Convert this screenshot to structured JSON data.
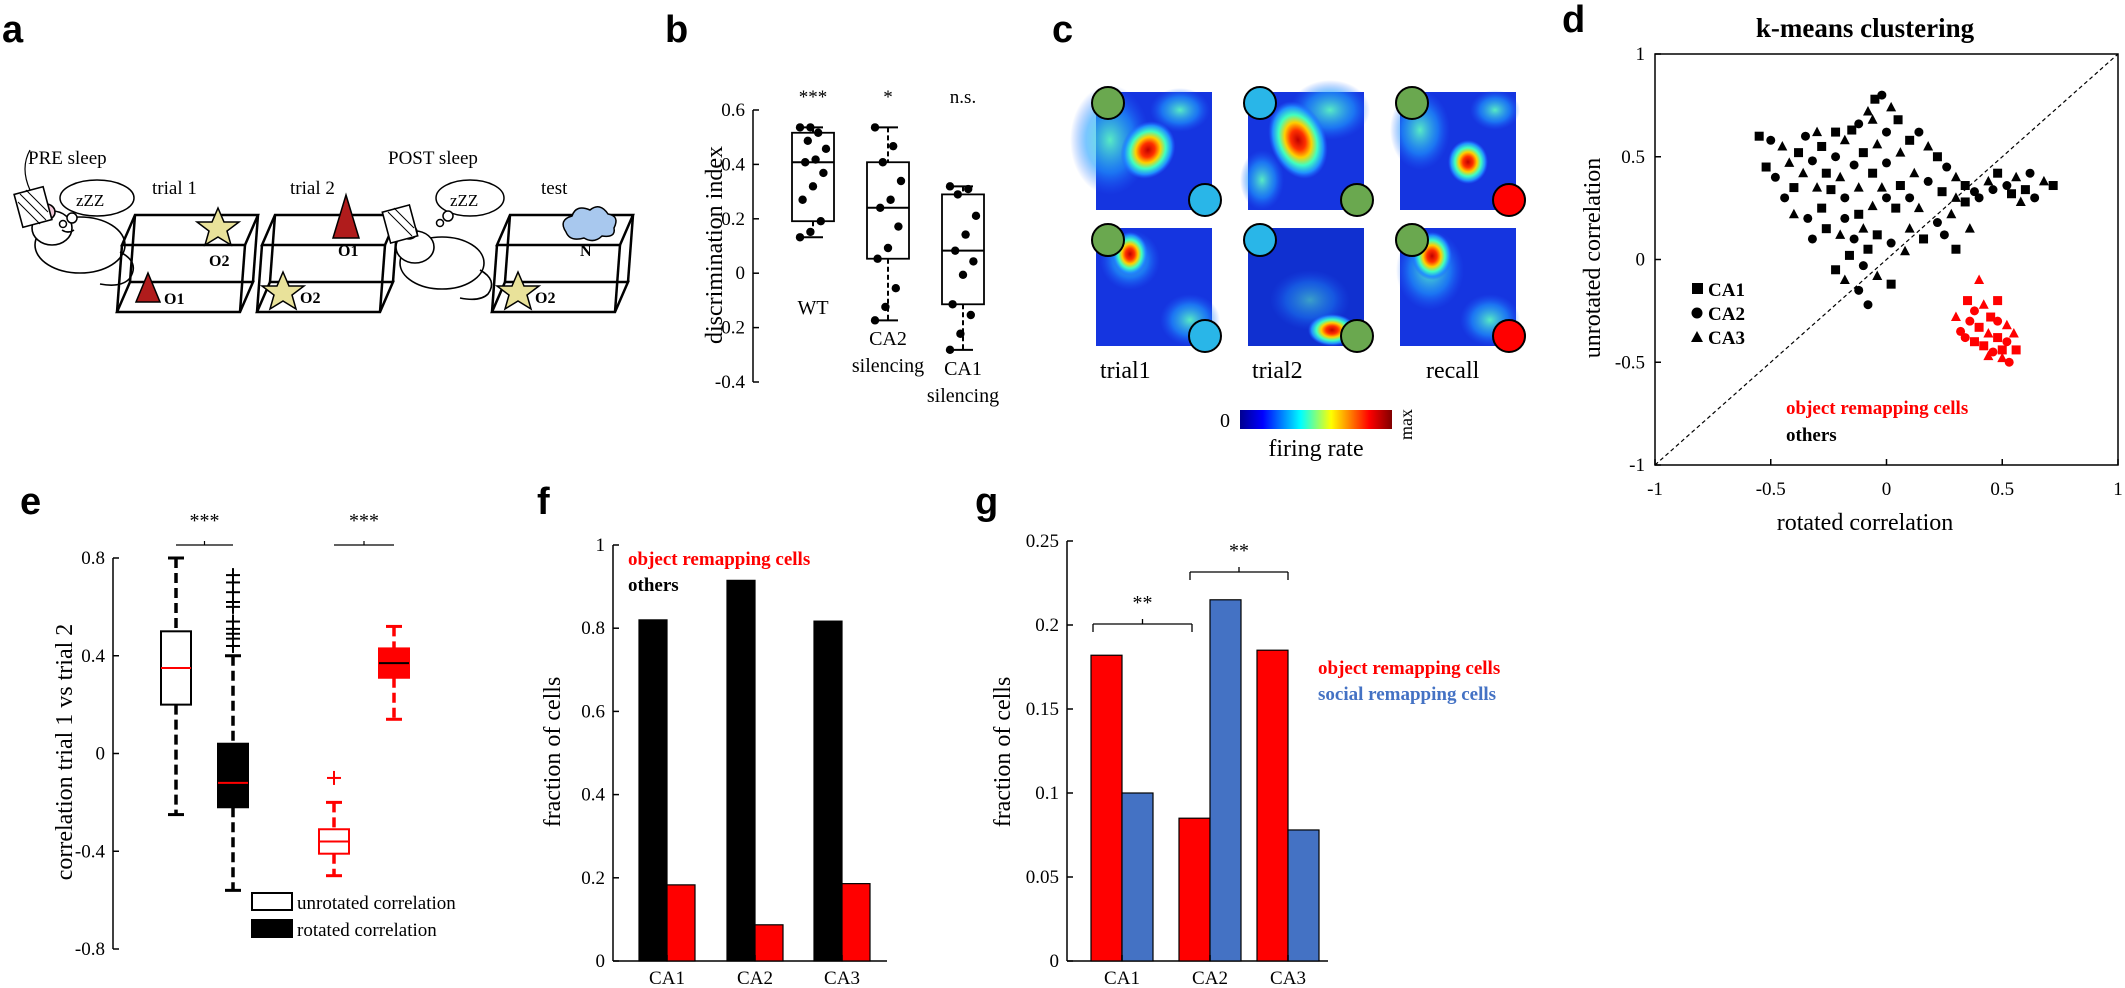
{
  "colors": {
    "red": "#ff0000",
    "blue": "#4472c4",
    "black": "#000000",
    "green": "#6aa84f",
    "cyan": "#29b6e8",
    "star": "#e9e29a",
    "dark_red": "#b01c1c",
    "cloud": "#a8c8ee"
  },
  "panel_a": {
    "letter": "a",
    "pre_sleep": "PRE sleep",
    "post_sleep": "POST sleep",
    "zzz": "zZZ",
    "trials": [
      {
        "label": "trial 1",
        "objects": [
          "O1",
          "O2"
        ]
      },
      {
        "label": "trial 2",
        "objects": [
          "O1",
          "O2"
        ]
      },
      {
        "label": "test",
        "objects": [
          "N",
          "O2"
        ]
      }
    ]
  },
  "panel_b": {
    "letter": "b",
    "chart_data": {
      "type": "box",
      "ylabel": "discrimination index",
      "ylim": [
        -0.4,
        0.6
      ],
      "yticks": [
        "0.6",
        "0.4",
        "0.2",
        "0",
        "-0.2",
        "-0.4"
      ],
      "groups": [
        {
          "label": "WT",
          "sig": "***",
          "q1": 0.2,
          "median": 0.42,
          "q3": 0.53,
          "whisker_low": 0.14,
          "whisker_high": 0.55,
          "points": [
            0.14,
            0.16,
            0.2,
            0.28,
            0.33,
            0.38,
            0.42,
            0.43,
            0.47,
            0.5,
            0.53,
            0.55,
            0.55
          ]
        },
        {
          "label": "CA2\nsilencing",
          "sig": "*",
          "q1": 0.06,
          "median": 0.25,
          "q3": 0.42,
          "whisker_low": -0.17,
          "whisker_high": 0.55,
          "points": [
            -0.17,
            -0.12,
            -0.05,
            0.06,
            0.1,
            0.18,
            0.25,
            0.28,
            0.35,
            0.42,
            0.48,
            0.55
          ]
        },
        {
          "label": "CA1\nsilencing",
          "sig": "n.s.",
          "q1": -0.11,
          "median": 0.09,
          "q3": 0.3,
          "whisker_low": -0.28,
          "whisker_high": 0.33,
          "points": [
            -0.28,
            -0.22,
            -0.15,
            -0.11,
            0.0,
            0.05,
            0.09,
            0.15,
            0.22,
            0.3,
            0.32,
            0.33
          ]
        }
      ]
    }
  },
  "panel_c": {
    "letter": "c",
    "columns": [
      "trial1",
      "trial2",
      "recall"
    ],
    "colorbar_min": "0",
    "colorbar_max": "max",
    "colorbar_label": "firing rate"
  },
  "panel_d": {
    "letter": "d",
    "chart_data": {
      "type": "scatter",
      "title": "k-means clustering",
      "xlabel": "rotated correlation",
      "ylabel": "unrotated correlation",
      "xlim": [
        -1,
        1
      ],
      "ylim": [
        -1,
        1
      ],
      "xticks": [
        "-1",
        "-0.5",
        "0",
        "0.5",
        "1"
      ],
      "yticks": [
        "1",
        "0.5",
        "0",
        "-0.5",
        "-1"
      ],
      "marker_legend": [
        {
          "shape": "square",
          "label": "CA1"
        },
        {
          "shape": "circle",
          "label": "CA2"
        },
        {
          "shape": "triangle",
          "label": "CA3"
        }
      ],
      "legend": [
        {
          "label": "object remapping cells",
          "color": "#ff0000"
        },
        {
          "label": "others",
          "color": "#000000"
        }
      ],
      "others": [
        [
          -0.55,
          0.6
        ],
        [
          -0.5,
          0.58
        ],
        [
          -0.45,
          0.55
        ],
        [
          -0.52,
          0.45
        ],
        [
          -0.48,
          0.4
        ],
        [
          -0.42,
          0.47
        ],
        [
          -0.38,
          0.52
        ],
        [
          -0.35,
          0.6
        ],
        [
          -0.3,
          0.62
        ],
        [
          -0.28,
          0.55
        ],
        [
          -0.32,
          0.48
        ],
        [
          -0.36,
          0.42
        ],
        [
          -0.4,
          0.35
        ],
        [
          -0.44,
          0.3
        ],
        [
          -0.3,
          0.35
        ],
        [
          -0.26,
          0.42
        ],
        [
          -0.22,
          0.5
        ],
        [
          -0.18,
          0.58
        ],
        [
          -0.15,
          0.63
        ],
        [
          -0.12,
          0.66
        ],
        [
          -0.08,
          0.72
        ],
        [
          -0.05,
          0.78
        ],
        [
          -0.02,
          0.8
        ],
        [
          0.02,
          0.74
        ],
        [
          0.05,
          0.68
        ],
        [
          0.0,
          0.62
        ],
        [
          -0.04,
          0.56
        ],
        [
          -0.1,
          0.52
        ],
        [
          -0.14,
          0.46
        ],
        [
          -0.2,
          0.4
        ],
        [
          -0.24,
          0.34
        ],
        [
          -0.18,
          0.3
        ],
        [
          -0.12,
          0.35
        ],
        [
          -0.06,
          0.42
        ],
        [
          0.0,
          0.47
        ],
        [
          0.06,
          0.52
        ],
        [
          0.1,
          0.58
        ],
        [
          0.14,
          0.62
        ],
        [
          0.18,
          0.55
        ],
        [
          0.22,
          0.5
        ],
        [
          0.26,
          0.45
        ],
        [
          0.3,
          0.4
        ],
        [
          0.34,
          0.36
        ],
        [
          0.38,
          0.33
        ],
        [
          0.3,
          0.3
        ],
        [
          0.24,
          0.33
        ],
        [
          0.18,
          0.38
        ],
        [
          0.12,
          0.42
        ],
        [
          0.06,
          0.36
        ],
        [
          0.0,
          0.3
        ],
        [
          -0.06,
          0.26
        ],
        [
          -0.12,
          0.22
        ],
        [
          -0.18,
          0.2
        ],
        [
          -0.1,
          0.15
        ],
        [
          -0.04,
          0.12
        ],
        [
          0.02,
          0.08
        ],
        [
          0.08,
          0.04
        ],
        [
          -0.08,
          0.05
        ],
        [
          -0.14,
          0.1
        ],
        [
          -0.2,
          0.12
        ],
        [
          -0.16,
          0.02
        ],
        [
          -0.1,
          -0.03
        ],
        [
          -0.04,
          -0.08
        ],
        [
          0.02,
          -0.12
        ],
        [
          -0.12,
          -0.15
        ],
        [
          -0.18,
          -0.1
        ],
        [
          -0.22,
          -0.05
        ],
        [
          -0.08,
          -0.22
        ],
        [
          0.1,
          0.15
        ],
        [
          0.16,
          0.1
        ],
        [
          0.22,
          0.18
        ],
        [
          0.28,
          0.22
        ],
        [
          0.34,
          0.28
        ],
        [
          0.4,
          0.3
        ],
        [
          0.44,
          0.38
        ],
        [
          0.48,
          0.42
        ],
        [
          0.52,
          0.36
        ],
        [
          0.56,
          0.4
        ],
        [
          0.6,
          0.34
        ],
        [
          0.64,
          0.3
        ],
        [
          0.68,
          0.38
        ],
        [
          0.72,
          0.36
        ],
        [
          0.62,
          0.42
        ],
        [
          0.58,
          0.28
        ],
        [
          0.54,
          0.32
        ],
        [
          0.46,
          0.34
        ],
        [
          0.36,
          0.15
        ],
        [
          0.3,
          0.05
        ],
        [
          0.25,
          0.12
        ],
        [
          0.14,
          0.25
        ],
        [
          -0.28,
          0.25
        ],
        [
          -0.34,
          0.2
        ],
        [
          -0.4,
          0.22
        ],
        [
          -0.26,
          0.15
        ],
        [
          -0.32,
          0.1
        ],
        [
          -0.02,
          0.35
        ],
        [
          0.04,
          0.25
        ],
        [
          0.1,
          0.3
        ],
        [
          -0.06,
          0.68
        ],
        [
          -0.22,
          0.62
        ]
      ],
      "remapping": [
        [
          0.35,
          -0.2
        ],
        [
          0.38,
          -0.25
        ],
        [
          0.42,
          -0.22
        ],
        [
          0.45,
          -0.28
        ],
        [
          0.48,
          -0.3
        ],
        [
          0.52,
          -0.32
        ],
        [
          0.4,
          -0.33
        ],
        [
          0.36,
          -0.3
        ],
        [
          0.44,
          -0.36
        ],
        [
          0.48,
          -0.38
        ],
        [
          0.52,
          -0.4
        ],
        [
          0.55,
          -0.36
        ],
        [
          0.42,
          -0.42
        ],
        [
          0.46,
          -0.45
        ],
        [
          0.5,
          -0.48
        ],
        [
          0.38,
          -0.4
        ],
        [
          0.32,
          -0.35
        ],
        [
          0.3,
          -0.28
        ],
        [
          0.56,
          -0.44
        ],
        [
          0.53,
          -0.5
        ],
        [
          0.4,
          -0.1
        ],
        [
          0.48,
          -0.2
        ],
        [
          0.34,
          -0.38
        ],
        [
          0.44,
          -0.47
        ],
        [
          0.5,
          -0.44
        ]
      ]
    }
  },
  "panel_e": {
    "letter": "e",
    "chart_data": {
      "type": "box",
      "ylabel": "correlation trial 1 vs trial 2",
      "ylim": [
        -0.8,
        0.8
      ],
      "yticks": [
        "0.8",
        "0.4",
        "0",
        "-0.4",
        "-0.8"
      ],
      "sig": [
        "***",
        "***"
      ],
      "legend": [
        {
          "label": "unrotated correlation",
          "fill": "white"
        },
        {
          "label": "rotated correlation",
          "fill": "black"
        }
      ],
      "boxes": [
        {
          "group": "others",
          "kind": "unrotated",
          "q1": 0.2,
          "median": 0.35,
          "q3": 0.5,
          "whisker_low": -0.25,
          "whisker_high": 0.8,
          "outliers": []
        },
        {
          "group": "others",
          "kind": "rotated",
          "q1": -0.22,
          "median": -0.12,
          "q3": 0.04,
          "whisker_low": -0.56,
          "whisker_high": 0.4,
          "outliers": [
            0.44,
            0.47,
            0.49,
            0.51,
            0.54,
            0.6,
            0.62,
            0.66,
            0.7,
            0.73
          ]
        },
        {
          "group": "object remapping cells",
          "kind": "unrotated",
          "q1": -0.41,
          "median": -0.36,
          "q3": -0.31,
          "whisker_low": -0.5,
          "whisker_high": -0.2,
          "outliers": [
            -0.1
          ]
        },
        {
          "group": "object remapping cells",
          "kind": "rotated",
          "q1": 0.31,
          "median": 0.37,
          "q3": 0.43,
          "whisker_low": 0.14,
          "whisker_high": 0.52,
          "outliers": []
        }
      ]
    }
  },
  "panel_f": {
    "letter": "f",
    "chart_data": {
      "type": "bar",
      "ylabel": "fraction of cells",
      "ylim": [
        0,
        1
      ],
      "yticks": [
        "1",
        "0.8",
        "0.6",
        "0.4",
        "0.2",
        "0"
      ],
      "categories": [
        "CA1",
        "CA2",
        "CA3"
      ],
      "series": [
        {
          "name": "others",
          "color": "#000000",
          "values": [
            0.82,
            0.915,
            0.817
          ]
        },
        {
          "name": "object remapping cells",
          "color": "#ff0000",
          "values": [
            0.183,
            0.087,
            0.186
          ]
        }
      ]
    }
  },
  "panel_g": {
    "letter": "g",
    "chart_data": {
      "type": "bar",
      "ylabel": "fraction of cells",
      "ylim": [
        0,
        0.25
      ],
      "yticks": [
        "0.25",
        "0.2",
        "0.15",
        "0.1",
        "0.05",
        "0"
      ],
      "categories": [
        "CA1",
        "CA2",
        "CA3"
      ],
      "series": [
        {
          "name": "object remapping cells",
          "color": "#ff0000",
          "values": [
            0.182,
            0.085,
            0.185
          ]
        },
        {
          "name": "social remapping cells",
          "color": "#4472c4",
          "values": [
            0.1,
            0.215,
            0.078
          ]
        }
      ],
      "sig": [
        "**",
        "**"
      ]
    }
  }
}
